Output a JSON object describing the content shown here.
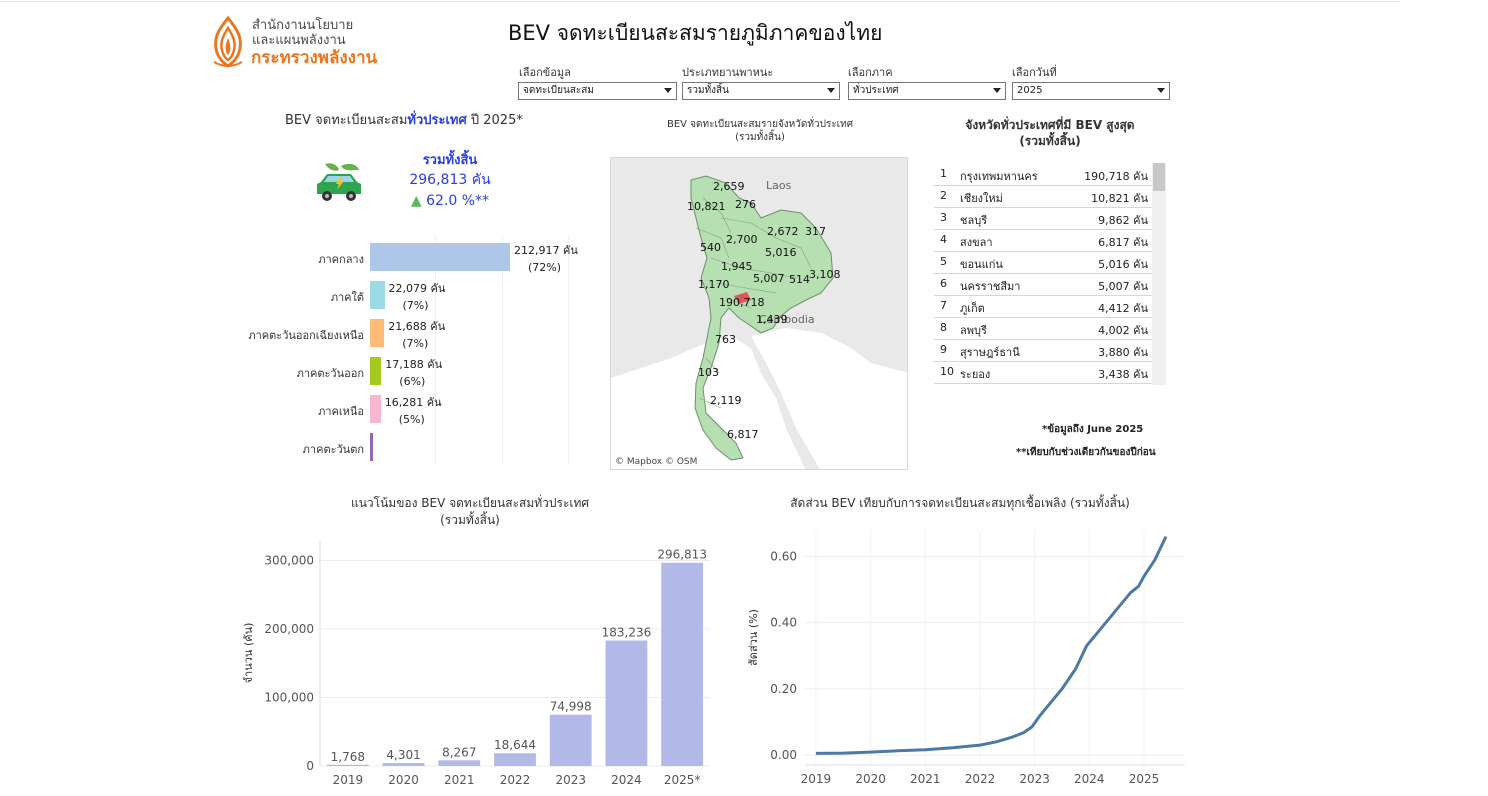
{
  "header": {
    "logo_line1": "สำนักงานนโยบาย",
    "logo_line2": "และแผนพลังงาน",
    "logo_line3": "กระทรวงพลังงาน",
    "title": "BEV จดทะเบียนสะสมรายภูมิภาคของไทย"
  },
  "filters": [
    {
      "label": "เลือกข้อมูล",
      "value": "จดทะเบียนสะสม"
    },
    {
      "label": "ประเภทยานพาหนะ",
      "value": "รวมทั้งสิ้น"
    },
    {
      "label": "เลือกภาค",
      "value": "ทั่วประเทศ"
    },
    {
      "label": "เลือกวันที่",
      "value": "2025"
    }
  ],
  "kpi": {
    "title_prefix": "BEV จดทะเบียนสะสม",
    "title_highlight": "ทั่วประเทศ",
    "title_suffix": " ปี  2025*",
    "total_label": "รวมทั้งสิ้น",
    "total_value": "296,813 คัน",
    "growth_arrow": "▲",
    "growth_value": "62.0  %**",
    "colors": {
      "accent": "#2b3fe0",
      "up": "#5cb85c"
    }
  },
  "regions": [
    {
      "name": "ภาคกลาง",
      "value": 212917,
      "value_label": "212,917 คัน",
      "pct": "(72%)",
      "color": "#aec7e8"
    },
    {
      "name": "ภาคใต้",
      "value": 22079,
      "value_label": "22,079 คัน",
      "pct": "(7%)",
      "color": "#9edae5"
    },
    {
      "name": "ภาคตะวันออกเฉียงเหนือ",
      "value": 21688,
      "value_label": "21,688 คัน",
      "pct": "(7%)",
      "color": "#ffbb78"
    },
    {
      "name": "ภาคตะวันออก",
      "value": 17188,
      "value_label": "17,188 คัน",
      "pct": "(6%)",
      "color": "#a6c91e"
    },
    {
      "name": "ภาคเหนือ",
      "value": 16281,
      "value_label": "16,281 คัน",
      "pct": "(5%)",
      "color": "#f7b6d2"
    },
    {
      "name": "ภาคตะวันตก",
      "value": 0,
      "value_label": "",
      "pct": "",
      "color": "#9467bd"
    }
  ],
  "map": {
    "title_line1": "BEV จดทะเบียนสะสมรายจังหวัดทั่วประเทศ",
    "title_line2": "(รวมทั้งสิ้น)",
    "place_laos": "Laos",
    "place_cambodia": "Cambodia",
    "attribution": "© Mapbox  © OSM",
    "labels": [
      "2,659",
      "10,821",
      "276",
      "2,672",
      "317",
      "540",
      "2,700",
      "5,016",
      "1,945",
      "5,007",
      "514",
      "3,108",
      "1,170",
      "190,718",
      "1,439",
      "763",
      "103",
      "2,119",
      "6,817"
    ]
  },
  "top_table": {
    "title_line1": "จังหวัดทั่วประเทศที่มี BEV สูงสุด",
    "title_line2": "(รวมทั้งสิ้น)",
    "rows": [
      {
        "rank": "1",
        "province": "กรุงเทพมหานคร",
        "value": "190,718 คัน"
      },
      {
        "rank": "2",
        "province": "เชียงใหม่",
        "value": "10,821 คัน"
      },
      {
        "rank": "3",
        "province": "ชลบุรี",
        "value": "9,862 คัน"
      },
      {
        "rank": "4",
        "province": "สงขลา",
        "value": "6,817 คัน"
      },
      {
        "rank": "5",
        "province": "ขอนแก่น",
        "value": "5,016 คัน"
      },
      {
        "rank": "6",
        "province": "นครราชสีมา",
        "value": "5,007 คัน"
      },
      {
        "rank": "7",
        "province": "ภูเก็ต",
        "value": "4,412 คัน"
      },
      {
        "rank": "8",
        "province": "ลพบุรี",
        "value": "4,002 คัน"
      },
      {
        "rank": "9",
        "province": "สุราษฎร์ธานี",
        "value": "3,880 คัน"
      },
      {
        "rank": "10",
        "province": "ระยอง",
        "value": "3,438 คัน"
      }
    ]
  },
  "notes": {
    "note1": "*ข้อมูลถึง June 2025",
    "note2": "**เทียบกับช่วงเดียวกันของปีก่อน"
  },
  "chart_data": [
    {
      "type": "bar",
      "title": "แนวโน้มของ BEV จดทะเบียนสะสมทั่วประเทศ",
      "subtitle": "(รวมทั้งสิ้น)",
      "ylabel": "จำนวน (คัน)",
      "xlabel": "",
      "categories": [
        "2019",
        "2020",
        "2021",
        "2022",
        "2023",
        "2024",
        "2025*"
      ],
      "values": [
        1768,
        4301,
        8267,
        18644,
        74998,
        183236,
        296813
      ],
      "value_labels": [
        "1,768",
        "4,301",
        "8,267",
        "18,644",
        "74,998",
        "183,236",
        "296,813"
      ],
      "yticks": [
        0,
        100000,
        200000,
        300000
      ],
      "ytick_labels": [
        "0",
        "100,000",
        "200,000",
        "300,000"
      ],
      "ylim": [
        0,
        330000
      ],
      "color": "#b3b9e6"
    },
    {
      "type": "line",
      "title": "สัดส่วน BEV เทียบกับการจดทะเบียนสะสมทุกเชื้อเพลิง (รวมทั้งสิ้น)",
      "ylabel": "สัดส่วน (%)",
      "xlabel": "",
      "xticks": [
        2019,
        2020,
        2021,
        2022,
        2023,
        2024,
        2025
      ],
      "xtick_labels": [
        "2019",
        "2020",
        "2021",
        "2022",
        "2023",
        "2024",
        "2025"
      ],
      "yticks": [
        0,
        0.2,
        0.4,
        0.6
      ],
      "ytick_labels": [
        "0.00",
        "0.20",
        "0.40",
        "0.60"
      ],
      "xlim": [
        2018.8,
        2025.75
      ],
      "ylim": [
        -0.03,
        0.68
      ],
      "color": "#4e79a7",
      "series": [
        {
          "x": [
            2019.0,
            2019.5,
            2020.0,
            2020.5,
            2021.0,
            2021.5,
            2022.0,
            2022.3,
            2022.6,
            2022.8,
            2022.95,
            2023.1,
            2023.25,
            2023.5,
            2023.75,
            2023.95,
            2024.2,
            2024.5,
            2024.75,
            2024.9,
            2025.0,
            2025.2,
            2025.4
          ],
          "y": [
            0.005,
            0.006,
            0.009,
            0.013,
            0.016,
            0.022,
            0.03,
            0.04,
            0.055,
            0.068,
            0.085,
            0.12,
            0.15,
            0.2,
            0.26,
            0.33,
            0.38,
            0.44,
            0.49,
            0.51,
            0.54,
            0.59,
            0.66
          ]
        }
      ]
    }
  ]
}
